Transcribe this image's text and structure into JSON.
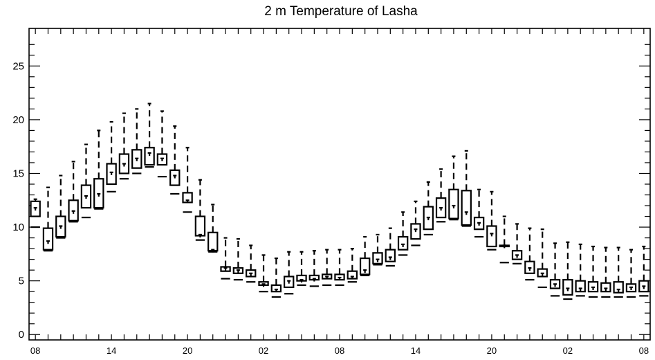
{
  "chart_data": {
    "type": "boxplot",
    "title": "2 m Temperature of Lasha",
    "xlabel": "",
    "ylabel": "",
    "ylim": [
      -0.5,
      28.5
    ],
    "yticks": [
      0,
      5,
      10,
      15,
      20,
      25
    ],
    "ytick_labels": [
      "0",
      "5",
      "10",
      "15",
      "20",
      "25"
    ],
    "xtick_labels": [
      {
        "index": 0,
        "label": "08"
      },
      {
        "index": 6,
        "label": "14"
      },
      {
        "index": 12,
        "label": "20"
      },
      {
        "index": 18,
        "label": "02"
      },
      {
        "index": 24,
        "label": "08"
      },
      {
        "index": 30,
        "label": "14"
      },
      {
        "index": 36,
        "label": "20"
      },
      {
        "index": 42,
        "label": "02"
      },
      {
        "index": 48,
        "label": "08"
      }
    ],
    "grid": false,
    "boxes": [
      {
        "min": 10.0,
        "q1": 11.0,
        "median": 11.8,
        "q3": 12.4,
        "max": 12.6
      },
      {
        "min": 7.8,
        "q1": 7.9,
        "median": 8.7,
        "q3": 9.9,
        "max": 13.7
      },
      {
        "min": 9.0,
        "q1": 9.1,
        "median": 10.1,
        "q3": 11.0,
        "max": 14.8
      },
      {
        "min": 10.5,
        "q1": 10.6,
        "median": 11.5,
        "q3": 12.5,
        "max": 16.1
      },
      {
        "min": 10.9,
        "q1": 11.8,
        "median": 12.9,
        "q3": 13.9,
        "max": 17.7
      },
      {
        "min": 11.7,
        "q1": 11.8,
        "median": 13.1,
        "q3": 14.5,
        "max": 19.0
      },
      {
        "min": 13.3,
        "q1": 14.0,
        "median": 15.1,
        "q3": 15.9,
        "max": 19.8
      },
      {
        "min": 14.5,
        "q1": 15.0,
        "median": 15.9,
        "q3": 16.8,
        "max": 20.6
      },
      {
        "min": 15.0,
        "q1": 15.5,
        "median": 16.4,
        "q3": 17.2,
        "max": 21.0
      },
      {
        "min": 15.6,
        "q1": 15.8,
        "median": 16.9,
        "q3": 17.4,
        "max": 21.5
      },
      {
        "min": 14.7,
        "q1": 15.8,
        "median": 16.4,
        "q3": 16.8,
        "max": 20.8
      },
      {
        "min": 13.1,
        "q1": 13.9,
        "median": 14.8,
        "q3": 15.3,
        "max": 19.4
      },
      {
        "min": 11.4,
        "q1": 12.3,
        "median": 12.5,
        "q3": 13.2,
        "max": 17.4
      },
      {
        "min": 8.8,
        "q1": 9.2,
        "median": 9.3,
        "q3": 11.0,
        "max": 14.4
      },
      {
        "min": 7.7,
        "q1": 7.8,
        "median": 7.9,
        "q3": 9.5,
        "max": 12.1
      },
      {
        "min": 5.2,
        "q1": 5.9,
        "median": 6.2,
        "q3": 6.3,
        "max": 9.0
      },
      {
        "min": 5.1,
        "q1": 5.7,
        "median": 6.0,
        "q3": 6.2,
        "max": 8.9
      },
      {
        "min": 4.9,
        "q1": 5.4,
        "median": 5.7,
        "q3": 6.0,
        "max": 8.3
      },
      {
        "min": 4.0,
        "q1": 4.6,
        "median": 4.7,
        "q3": 4.9,
        "max": 7.4
      },
      {
        "min": 3.5,
        "q1": 4.0,
        "median": 4.2,
        "q3": 4.6,
        "max": 7.1
      },
      {
        "min": 3.8,
        "q1": 4.4,
        "median": 5.0,
        "q3": 5.4,
        "max": 7.7
      },
      {
        "min": 4.6,
        "q1": 5.0,
        "median": 5.1,
        "q3": 5.5,
        "max": 7.7
      },
      {
        "min": 4.5,
        "q1": 5.1,
        "median": 5.2,
        "q3": 5.5,
        "max": 7.8
      },
      {
        "min": 4.6,
        "q1": 5.2,
        "median": 5.4,
        "q3": 5.6,
        "max": 7.9
      },
      {
        "min": 4.6,
        "q1": 5.1,
        "median": 5.3,
        "q3": 5.6,
        "max": 7.9
      },
      {
        "min": 4.9,
        "q1": 5.2,
        "median": 5.4,
        "q3": 5.9,
        "max": 8.0
      },
      {
        "min": 5.5,
        "q1": 5.6,
        "median": 6.0,
        "q3": 7.1,
        "max": 9.1
      },
      {
        "min": 6.5,
        "q1": 6.6,
        "median": 7.0,
        "q3": 7.6,
        "max": 9.3
      },
      {
        "min": 6.4,
        "q1": 6.8,
        "median": 7.2,
        "q3": 7.9,
        "max": 9.9
      },
      {
        "min": 7.4,
        "q1": 7.9,
        "median": 8.4,
        "q3": 9.1,
        "max": 11.4
      },
      {
        "min": 8.3,
        "q1": 8.9,
        "median": 9.8,
        "q3": 10.3,
        "max": 12.4
      },
      {
        "min": 9.3,
        "q1": 9.8,
        "median": 10.9,
        "q3": 11.9,
        "max": 14.2
      },
      {
        "min": 10.5,
        "q1": 10.9,
        "median": 11.8,
        "q3": 12.7,
        "max": 15.4
      },
      {
        "min": 10.7,
        "q1": 10.8,
        "median": 12.0,
        "q3": 13.5,
        "max": 16.6
      },
      {
        "min": 10.1,
        "q1": 10.2,
        "median": 11.4,
        "q3": 13.4,
        "max": 17.1
      },
      {
        "min": 9.1,
        "q1": 9.8,
        "median": 10.4,
        "q3": 10.9,
        "max": 13.5
      },
      {
        "min": 7.9,
        "q1": 8.2,
        "median": 9.4,
        "q3": 10.1,
        "max": 13.3
      },
      {
        "min": 6.7,
        "q1": 8.2,
        "median": 8.3,
        "q3": 8.3,
        "max": 11.0
      },
      {
        "min": 6.6,
        "q1": 7.0,
        "median": 7.4,
        "q3": 7.8,
        "max": 10.3
      },
      {
        "min": 5.1,
        "q1": 5.7,
        "median": 6.2,
        "q3": 6.8,
        "max": 9.9
      },
      {
        "min": 4.4,
        "q1": 5.4,
        "median": 5.7,
        "q3": 6.1,
        "max": 9.8
      },
      {
        "min": 3.6,
        "q1": 4.3,
        "median": 4.7,
        "q3": 5.1,
        "max": 8.5
      },
      {
        "min": 3.3,
        "q1": 3.7,
        "median": 4.3,
        "q3": 5.1,
        "max": 8.6
      },
      {
        "min": 3.6,
        "q1": 4.0,
        "median": 4.3,
        "q3": 5.0,
        "max": 8.4
      },
      {
        "min": 3.5,
        "q1": 4.0,
        "median": 4.4,
        "q3": 4.9,
        "max": 8.2
      },
      {
        "min": 3.5,
        "q1": 4.0,
        "median": 4.3,
        "q3": 4.8,
        "max": 8.1
      },
      {
        "min": 3.5,
        "q1": 3.9,
        "median": 4.2,
        "q3": 4.9,
        "max": 8.1
      },
      {
        "min": 3.5,
        "q1": 4.0,
        "median": 4.4,
        "q3": 4.7,
        "max": 7.9
      },
      {
        "min": 3.6,
        "q1": 4.0,
        "median": 4.5,
        "q3": 5.0,
        "max": 8.2
      }
    ]
  }
}
